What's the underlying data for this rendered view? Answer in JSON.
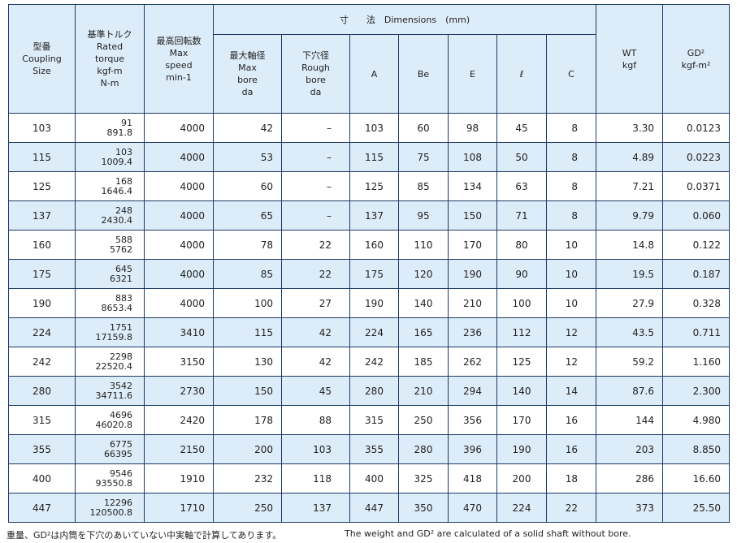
{
  "header": {
    "model": [
      "型番",
      "Coupling",
      "Size"
    ],
    "torque": [
      "基準トルク",
      "Rated",
      "torque",
      "kgf-m",
      "N-m"
    ],
    "speed": [
      "最高回転数",
      "Max",
      "speed",
      "min-1"
    ],
    "dimensions": "寸　　法　Dimensions　(mm)",
    "max_bore": [
      "最大軸径",
      "Max",
      "bore",
      "da"
    ],
    "rough_bore": [
      "下穴径",
      "Rough",
      "bore",
      "da"
    ],
    "a": "A",
    "be": "Be",
    "e": "E",
    "l": "ℓ",
    "c": "C",
    "wt": [
      "WT",
      "kgf"
    ],
    "gd2": [
      "GD²",
      "kgf-m²"
    ]
  },
  "table": {
    "rows": [
      [
        "103",
        "91",
        "891.8",
        "4000",
        "42",
        "–",
        "103",
        "60",
        "98",
        "45",
        "8",
        "3.30",
        "0.0123"
      ],
      [
        "115",
        "103",
        "1009.4",
        "4000",
        "53",
        "–",
        "115",
        "75",
        "108",
        "50",
        "8",
        "4.89",
        "0.0223"
      ],
      [
        "125",
        "168",
        "1646.4",
        "4000",
        "60",
        "–",
        "125",
        "85",
        "134",
        "63",
        "8",
        "7.21",
        "0.0371"
      ],
      [
        "137",
        "248",
        "2430.4",
        "4000",
        "65",
        "–",
        "137",
        "95",
        "150",
        "71",
        "8",
        "9.79",
        "0.060"
      ],
      [
        "160",
        "588",
        "5762",
        "4000",
        "78",
        "22",
        "160",
        "110",
        "170",
        "80",
        "10",
        "14.8",
        "0.122"
      ],
      [
        "175",
        "645",
        "6321",
        "4000",
        "85",
        "22",
        "175",
        "120",
        "190",
        "90",
        "10",
        "19.5",
        "0.187"
      ],
      [
        "190",
        "883",
        "8653.4",
        "4000",
        "100",
        "27",
        "190",
        "140",
        "210",
        "100",
        "10",
        "27.9",
        "0.328"
      ],
      [
        "224",
        "1751",
        "17159.8",
        "3410",
        "115",
        "42",
        "224",
        "165",
        "236",
        "112",
        "12",
        "43.5",
        "0.711"
      ],
      [
        "242",
        "2298",
        "22520.4",
        "3150",
        "130",
        "42",
        "242",
        "185",
        "262",
        "125",
        "12",
        "59.2",
        "1.160"
      ],
      [
        "280",
        "3542",
        "34711.6",
        "2730",
        "150",
        "45",
        "280",
        "210",
        "294",
        "140",
        "14",
        "87.6",
        "2.300"
      ],
      [
        "315",
        "4696",
        "46020.8",
        "2420",
        "178",
        "88",
        "315",
        "250",
        "356",
        "170",
        "16",
        "144",
        "4.980"
      ],
      [
        "355",
        "6775",
        "66395",
        "2150",
        "200",
        "103",
        "355",
        "280",
        "396",
        "190",
        "16",
        "203",
        "8.850"
      ],
      [
        "400",
        "9546",
        "93550.8",
        "1910",
        "232",
        "118",
        "400",
        "325",
        "418",
        "200",
        "18",
        "286",
        "16.60"
      ],
      [
        "447",
        "12296",
        "120500.8",
        "1710",
        "250",
        "137",
        "447",
        "350",
        "470",
        "224",
        "22",
        "373",
        "25.50"
      ]
    ]
  },
  "notes": {
    "ja": "重量、GD²は内筒を下穴のあいていない中実軸で計算してあります。",
    "en": "The weight and GD² are calculated of a solid shaft without bore."
  }
}
